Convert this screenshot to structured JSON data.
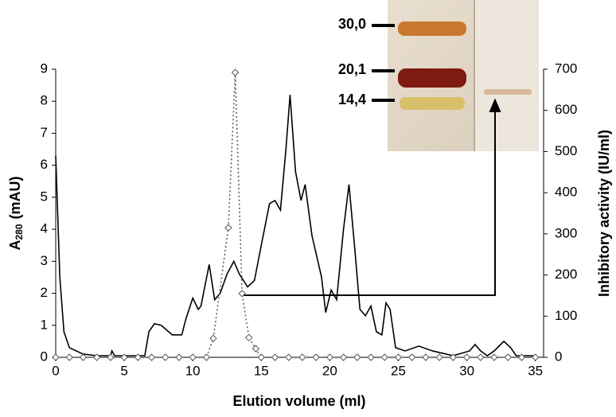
{
  "chart_data": {
    "type": "line",
    "xlabel": "Elution volume (ml)",
    "ylabel": {
      "main": "A",
      "sub": "280",
      "unit": "(mAU)"
    },
    "y2label": "Inhibitory activity (IU/ml)",
    "xlim": [
      0,
      35.6
    ],
    "xticks": [
      0,
      5,
      10,
      15,
      20,
      25,
      30,
      35
    ],
    "ylim": [
      0,
      9
    ],
    "yticks": [
      0,
      1,
      2,
      3,
      4,
      5,
      6,
      7,
      8,
      9
    ],
    "y2lim": [
      0,
      700
    ],
    "y2ticks": [
      0,
      100,
      200,
      300,
      400,
      500,
      600,
      700
    ],
    "series": [
      {
        "color": "#000000",
        "style": "solid",
        "x": [
          0,
          0.3,
          0.6,
          1,
          2,
          3,
          4,
          4.1,
          4.3,
          6.5,
          6.8,
          7.2,
          7.7,
          8.5,
          9.2,
          9.5,
          10,
          10.4,
          10.6,
          11.2,
          11.6,
          12,
          12.5,
          13,
          13.4,
          14,
          14.5,
          15,
          15.6,
          16,
          16.4,
          16.8,
          17.1,
          17.5,
          17.9,
          18.2,
          18.7,
          19.4,
          19.7,
          20.1,
          20.5,
          21,
          21.4,
          21.8,
          22.2,
          22.6,
          23,
          23.4,
          23.8,
          24.1,
          24.4,
          24.8,
          25.5,
          26.5,
          27.5,
          29,
          30.2,
          30.6,
          31,
          31.5,
          32,
          32.7,
          33.2,
          33.6,
          35
        ],
        "values": [
          6.3,
          2.5,
          0.8,
          0.3,
          0.1,
          0.05,
          0.05,
          0.2,
          0.05,
          0.05,
          0.8,
          1.05,
          1.0,
          0.7,
          0.7,
          1.2,
          1.85,
          1.5,
          1.6,
          2.9,
          1.8,
          2.0,
          2.6,
          3.0,
          2.6,
          2.2,
          2.4,
          3.5,
          4.8,
          4.9,
          4.6,
          6.5,
          8.2,
          5.8,
          4.9,
          5.4,
          3.8,
          2.5,
          1.4,
          2.1,
          1.8,
          4.0,
          5.4,
          3.5,
          1.5,
          1.3,
          1.6,
          0.8,
          0.7,
          1.7,
          1.5,
          0.3,
          0.2,
          0.35,
          0.2,
          0.05,
          0.2,
          0.4,
          0.2,
          0.05,
          0.2,
          0.5,
          0.3,
          0.05,
          0.05
        ]
      },
      {
        "color": "#555555",
        "style": "dotted",
        "marker": "diamond",
        "axis": "y2",
        "x": [
          0,
          1,
          2,
          3,
          4,
          5,
          6,
          7,
          8,
          9,
          10,
          11,
          11.5,
          12.6,
          13.1,
          13.6,
          14.1,
          14.6,
          15,
          16,
          17,
          18,
          19,
          20,
          21,
          22,
          23,
          24,
          25,
          26,
          27,
          28,
          29,
          30,
          31,
          32,
          33,
          34,
          35
        ],
        "values": [
          0,
          0,
          0,
          0,
          0,
          0,
          0,
          0,
          0,
          0,
          0,
          0,
          46,
          315,
          692,
          155,
          48,
          21,
          0,
          0,
          0,
          0,
          0,
          0,
          0,
          0,
          0,
          0,
          0,
          0,
          0,
          0,
          0,
          0,
          0,
          0,
          0,
          0,
          0
        ]
      }
    ],
    "annotations": [
      "30,0",
      "20,1",
      "14,4"
    ]
  }
}
